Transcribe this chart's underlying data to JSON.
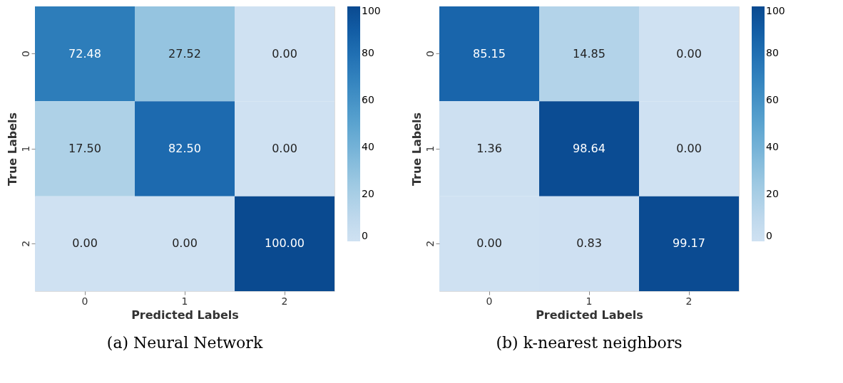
{
  "chart_data": [
    {
      "type": "heatmap",
      "title": "(a) Neural Network",
      "xlabel": "Predicted Labels",
      "ylabel": "True Labels",
      "categories": [
        "0",
        "1",
        "2"
      ],
      "y_categories": [
        "0",
        "1",
        "2"
      ],
      "cells": [
        [
          72.48,
          27.52,
          0.0
        ],
        [
          17.5,
          82.5,
          0.0
        ],
        [
          0.0,
          0.0,
          100.0
        ]
      ],
      "cell_labels": [
        [
          "72.48",
          "27.52",
          "0.00"
        ],
        [
          "17.50",
          "82.50",
          "0.00"
        ],
        [
          "0.00",
          "0.00",
          "100.00"
        ]
      ],
      "clim": [
        0,
        100
      ],
      "cticks": [
        0,
        20,
        40,
        60,
        80,
        100
      ]
    },
    {
      "type": "heatmap",
      "title": "(b) k-nearest neighbors",
      "xlabel": "Predicted Labels",
      "ylabel": "True Labels",
      "categories": [
        "0",
        "1",
        "2"
      ],
      "y_categories": [
        "0",
        "1",
        "2"
      ],
      "cells": [
        [
          85.15,
          14.85,
          0.0
        ],
        [
          1.36,
          98.64,
          0.0
        ],
        [
          0.0,
          0.83,
          99.17
        ]
      ],
      "cell_labels": [
        [
          "85.15",
          "14.85",
          "0.00"
        ],
        [
          "1.36",
          "98.64",
          "0.00"
        ],
        [
          "0.00",
          "0.83",
          "99.17"
        ]
      ],
      "clim": [
        0,
        100
      ],
      "cticks": [
        0,
        20,
        40,
        60,
        80,
        100
      ]
    }
  ]
}
